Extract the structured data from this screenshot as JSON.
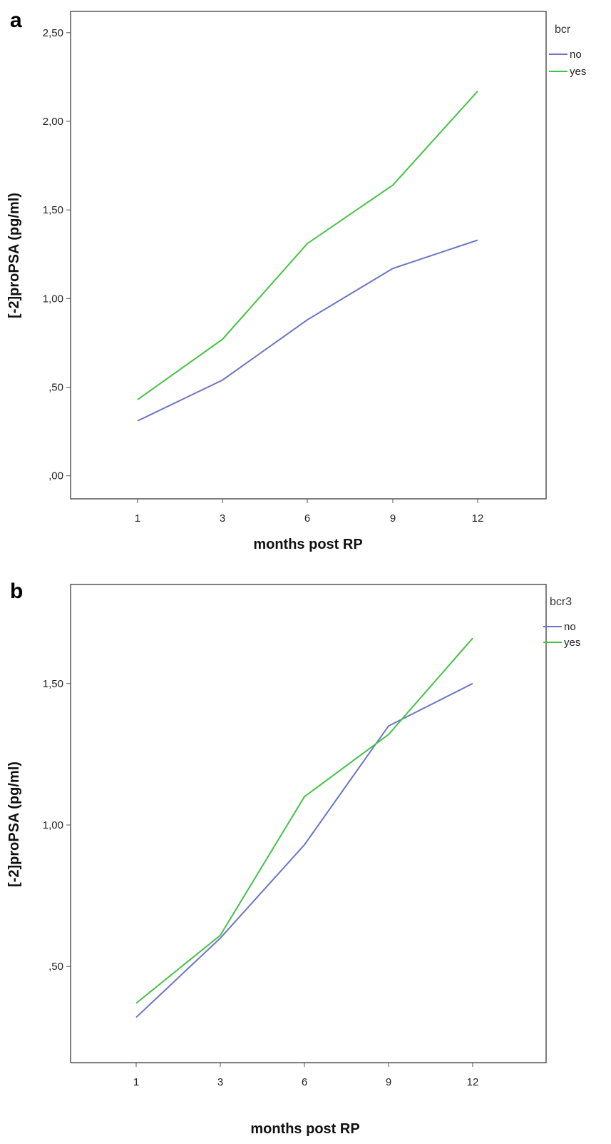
{
  "chart_data": [
    {
      "panel_label": "a",
      "type": "line",
      "x_categories": [
        "1",
        "3",
        "6",
        "9",
        "12"
      ],
      "xlabel": "months post RP",
      "ylabel": "[-2]proPSA (pg/ml)",
      "ylim": [
        -0.13,
        2.62
      ],
      "y_ticks": [
        0.0,
        0.5,
        1.0,
        1.5,
        2.0,
        2.5
      ],
      "y_tick_labels": [
        ",00",
        ",50",
        "1,00",
        "1,50",
        "2,00",
        "2,50"
      ],
      "legend_title": "bcr",
      "legend_position": "top-right, outside plot",
      "grid": false,
      "series": [
        {
          "name": "no",
          "color": "#6a75c4",
          "values": [
            0.31,
            0.54,
            0.88,
            1.17,
            1.33
          ]
        },
        {
          "name": "yes",
          "color": "#44c244",
          "values": [
            0.43,
            0.77,
            1.31,
            1.64,
            2.17
          ]
        }
      ]
    },
    {
      "panel_label": "b",
      "type": "line",
      "x_categories": [
        "1",
        "3",
        "6",
        "9",
        "12"
      ],
      "xlabel": "months post RP",
      "ylabel": "[-2]proPSA (pg/ml)",
      "ylim": [
        0.16,
        1.85
      ],
      "y_ticks": [
        0.5,
        1.0,
        1.5
      ],
      "y_tick_labels": [
        ",50",
        "1,00",
        "1,50"
      ],
      "legend_title": "bcr3",
      "legend_position": "top-right, outside plot",
      "grid": false,
      "series": [
        {
          "name": "no",
          "color": "#6a75c4",
          "values": [
            0.32,
            0.6,
            0.93,
            1.35,
            1.5
          ]
        },
        {
          "name": "yes",
          "color": "#44c244",
          "values": [
            0.37,
            0.61,
            1.1,
            1.32,
            1.66
          ]
        }
      ]
    }
  ]
}
